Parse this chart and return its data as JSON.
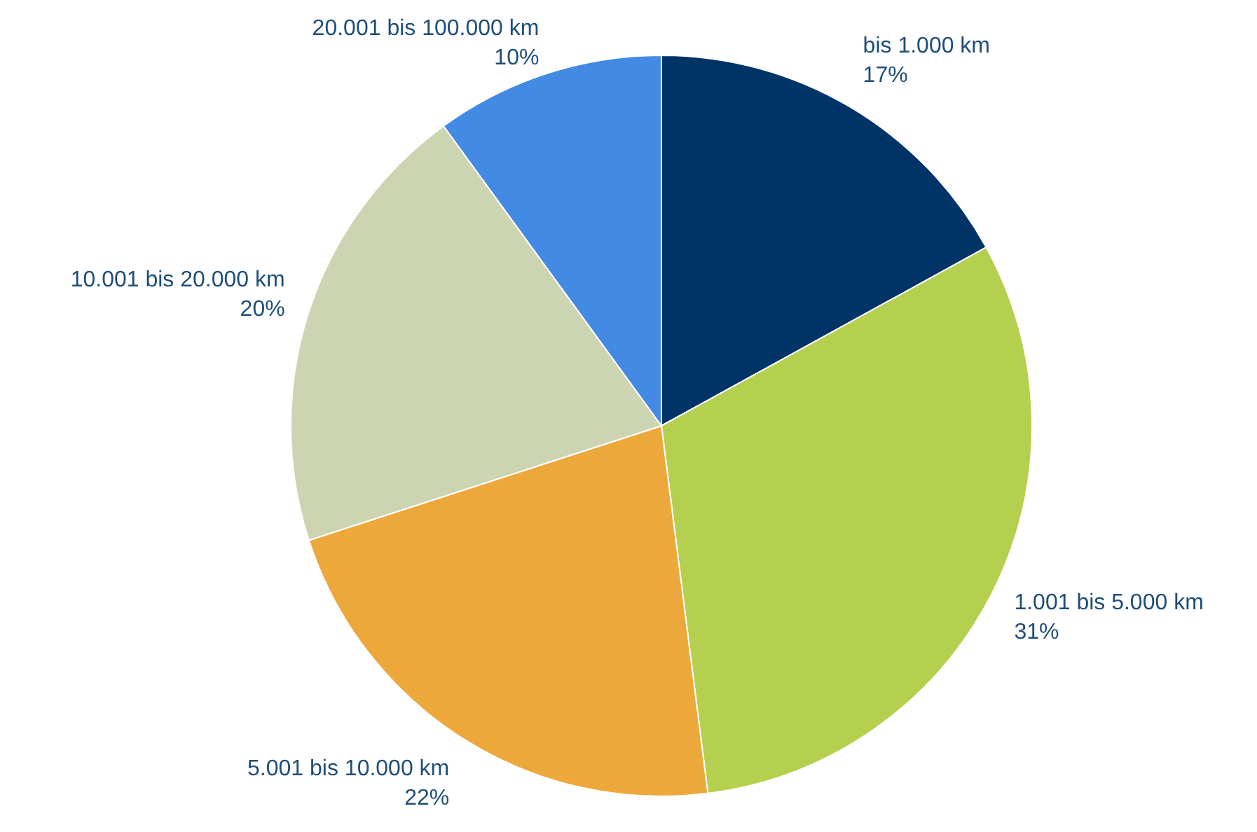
{
  "chart_data": {
    "type": "pie",
    "categories": [
      "bis 1.000 km",
      "1.001 bis 5.000 km",
      "5.001 bis 10.000 km",
      "10.001 bis 20.000 km",
      "20.001 bis 100.000 km"
    ],
    "values": [
      17,
      31,
      22,
      20,
      10
    ],
    "value_labels": [
      "17%",
      "31%",
      "22%",
      "20%",
      "10%"
    ],
    "colors": [
      "#003366",
      "#b5cf4f",
      "#eda83b",
      "#cdd4b2",
      "#428ae3"
    ],
    "legend": false
  }
}
